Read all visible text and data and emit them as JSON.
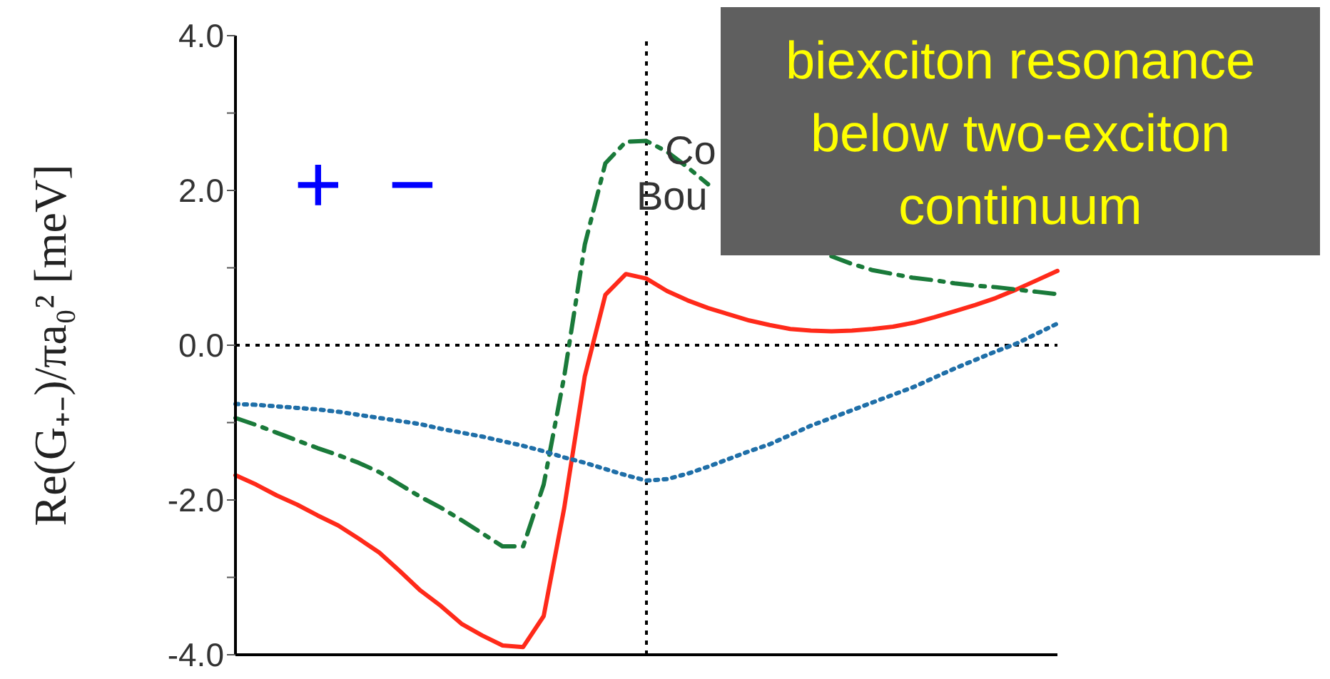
{
  "chart_data": {
    "type": "line",
    "ylabel": "Re(G₊₋)/πa₀² [meV]",
    "categories": [
      null,
      null,
      null,
      null,
      null,
      null,
      null,
      null,
      null,
      null,
      null,
      null,
      null,
      null,
      null,
      null,
      null,
      null,
      null,
      null,
      null,
      null,
      null,
      null,
      null,
      null,
      null,
      null,
      null,
      null,
      null,
      null,
      null,
      null,
      null,
      null,
      null,
      null,
      null,
      null,
      null
    ],
    "ylim": [
      -4,
      4
    ],
    "yticks": [
      {
        "value": -4,
        "label": "-4.0"
      },
      {
        "value": -3,
        "label": null
      },
      {
        "value": -2,
        "label": "-2.0"
      },
      {
        "value": -1,
        "label": null
      },
      {
        "value": 0,
        "label": "0.0"
      },
      {
        "value": 1,
        "label": null
      },
      {
        "value": 2,
        "label": "2.0"
      },
      {
        "value": 3,
        "label": null
      },
      {
        "value": 4,
        "label": "4.0"
      }
    ],
    "tick_labels": "y",
    "marker": "none",
    "series": [
      {
        "color": "#ff2a1a",
        "line_style": "solid",
        "values": [
          -1.68,
          -1.8,
          -1.94,
          -2.06,
          -2.2,
          -2.33,
          -2.5,
          -2.68,
          -2.92,
          -3.17,
          -3.37,
          -3.6,
          -3.75,
          -3.88,
          -3.9,
          -3.5,
          -2.1,
          -0.4,
          0.65,
          0.92,
          0.86,
          0.7,
          0.58,
          0.48,
          0.4,
          0.32,
          0.26,
          0.21,
          0.19,
          0.18,
          0.19,
          0.21,
          0.24,
          0.29,
          0.36,
          0.44,
          0.52,
          0.61,
          0.72,
          0.84,
          0.96
        ]
      },
      {
        "color": "#1a7a3a",
        "line_style": "dashed",
        "values": [
          -0.94,
          -1.03,
          -1.13,
          -1.23,
          -1.33,
          -1.42,
          -1.52,
          -1.64,
          -1.8,
          -1.96,
          -2.1,
          -2.26,
          -2.43,
          -2.6,
          -2.6,
          -1.8,
          -0.4,
          1.3,
          2.35,
          2.63,
          2.64,
          2.5,
          2.3,
          2.08,
          null,
          null,
          null,
          null,
          null,
          1.15,
          1.05,
          0.97,
          0.92,
          0.87,
          0.84,
          0.8,
          0.77,
          0.75,
          0.72,
          0.69,
          0.66
        ]
      },
      {
        "color": "#1f6fa8",
        "line_style": "dotted",
        "values": [
          -0.76,
          -0.77,
          -0.79,
          -0.81,
          -0.83,
          -0.86,
          -0.9,
          -0.94,
          -0.98,
          -1.02,
          -1.08,
          -1.13,
          -1.18,
          -1.24,
          -1.3,
          -1.37,
          -1.45,
          -1.52,
          -1.6,
          -1.68,
          -1.75,
          -1.73,
          -1.66,
          -1.57,
          -1.47,
          -1.37,
          -1.28,
          -1.16,
          -1.04,
          -0.94,
          -0.84,
          -0.74,
          -0.64,
          -0.54,
          -0.42,
          -0.3,
          -0.19,
          -0.08,
          0.02,
          0.15,
          0.28
        ]
      }
    ],
    "ref_lines": [
      {
        "axis": "y",
        "value": 0,
        "line_style": "dotted",
        "color": "#000000"
      }
    ],
    "annotations": [
      "+ −",
      "Co",
      "Bou",
      "biexciton resonance below two-exciton continuum"
    ]
  }
}
